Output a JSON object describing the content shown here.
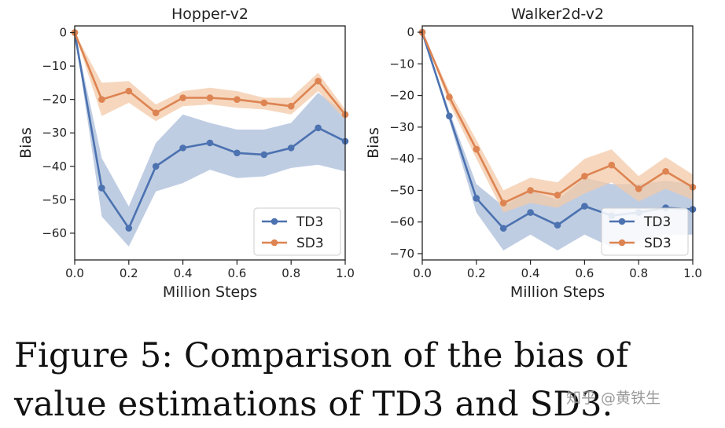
{
  "chart_data": [
    {
      "type": "line",
      "title": "Hopper-v2",
      "xlabel": "Million Steps",
      "ylabel": "Bias",
      "xlim": [
        0.0,
        1.0
      ],
      "ylim": [
        -68,
        2
      ],
      "xticks": [
        0.0,
        0.2,
        0.4,
        0.6,
        0.8,
        1.0
      ],
      "xtick_labels": [
        "0.0",
        "0.2",
        "0.4",
        "0.6",
        "0.8",
        "1.0"
      ],
      "yticks": [
        0,
        -10,
        -20,
        -30,
        -40,
        -50,
        -60
      ],
      "ytick_labels": [
        "0",
        "−10",
        "−20",
        "−30",
        "−40",
        "−50",
        "−60"
      ],
      "legend_position": "bottom-right",
      "x": [
        0.0,
        0.1,
        0.2,
        0.3,
        0.4,
        0.5,
        0.6,
        0.7,
        0.8,
        0.9,
        1.0
      ],
      "series": [
        {
          "name": "TD3",
          "color": "#4c72b0",
          "band_color": "#a9bcd9",
          "values": [
            0,
            -46.5,
            -58.5,
            -40,
            -34.5,
            -33,
            -36,
            -36.5,
            -34.5,
            -28.5,
            -32.5
          ],
          "lower": [
            0,
            -55,
            -64,
            -47.5,
            -45,
            -41,
            -43.5,
            -43,
            -40.5,
            -39.5,
            -41.5
          ],
          "upper": [
            0,
            -37.5,
            -52,
            -33,
            -24.5,
            -27,
            -29,
            -29,
            -27,
            -18,
            -24
          ]
        },
        {
          "name": "SD3",
          "color": "#dd8452",
          "band_color": "#f3c9a8",
          "values": [
            0,
            -20,
            -17.5,
            -24,
            -19.5,
            -19.5,
            -20,
            -21,
            -22,
            -14.5,
            -24.5
          ],
          "lower": [
            0,
            -25,
            -21,
            -26.5,
            -22,
            -21.5,
            -22.5,
            -23,
            -24.5,
            -17.5,
            -26
          ],
          "upper": [
            0,
            -15,
            -14.5,
            -21.5,
            -17.5,
            -16.5,
            -17.5,
            -19.5,
            -19.5,
            -12,
            -23
          ]
        }
      ]
    },
    {
      "type": "line",
      "title": "Walker2d-v2",
      "xlabel": "Million Steps",
      "ylabel": "Bias",
      "xlim": [
        0.0,
        1.0
      ],
      "ylim": [
        -72,
        2
      ],
      "xticks": [
        0.0,
        0.2,
        0.4,
        0.6,
        0.8,
        1.0
      ],
      "xtick_labels": [
        "0.0",
        "0.2",
        "0.4",
        "0.6",
        "0.8",
        "1.0"
      ],
      "yticks": [
        0,
        -10,
        -20,
        -30,
        -40,
        -50,
        -60,
        -70
      ],
      "ytick_labels": [
        "0",
        "−10",
        "−20",
        "−30",
        "−40",
        "−50",
        "−60",
        "−70"
      ],
      "legend_position": "bottom-right",
      "x": [
        0.0,
        0.1,
        0.2,
        0.3,
        0.4,
        0.5,
        0.6,
        0.7,
        0.8,
        0.9,
        1.0
      ],
      "series": [
        {
          "name": "TD3",
          "color": "#4c72b0",
          "band_color": "#a9bcd9",
          "values": [
            0,
            -26.5,
            -52.5,
            -62,
            -57,
            -61,
            -55,
            -58,
            -57,
            -55.5,
            -56
          ],
          "lower": [
            0,
            -28,
            -57,
            -69,
            -64,
            -69,
            -64,
            -68,
            -66,
            -64,
            -64
          ],
          "upper": [
            0,
            -25,
            -48,
            -55,
            -50,
            -53,
            -46,
            -48,
            -48,
            -47,
            -48
          ]
        },
        {
          "name": "SD3",
          "color": "#dd8452",
          "band_color": "#f3c9a8",
          "values": [
            0,
            -20.5,
            -37,
            -54,
            -50,
            -51.5,
            -45.5,
            -42,
            -49.5,
            -44,
            -49
          ],
          "lower": [
            0,
            -22.5,
            -40,
            -57,
            -54,
            -55.5,
            -51,
            -47.5,
            -53.5,
            -49.5,
            -53
          ],
          "upper": [
            0,
            -18.5,
            -34,
            -50,
            -46,
            -47.5,
            -40,
            -37,
            -45.5,
            -39.5,
            -45
          ]
        }
      ]
    }
  ],
  "caption": {
    "line1": "Figure 5:  Comparison of the bias of",
    "line2": "value estimations of TD3 and SD3."
  },
  "watermark": "知乎 @黄铁生"
}
